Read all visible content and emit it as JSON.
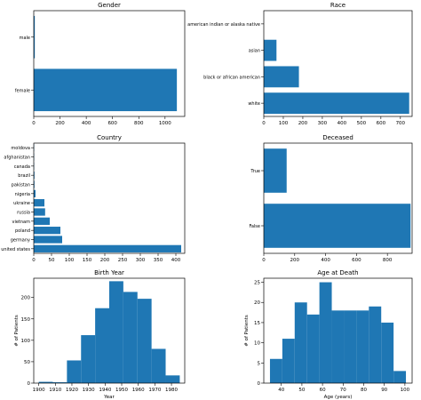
{
  "bar_color": "#1f77b4",
  "chart_data": [
    {
      "id": "gender",
      "type": "barh",
      "title": "Gender",
      "categories": [
        "female",
        "male"
      ],
      "values": [
        1090,
        8
      ],
      "xlim": [
        0,
        1150
      ],
      "xticks": [
        0,
        200,
        400,
        600,
        800,
        1000
      ],
      "xlabel": "",
      "ylabel": ""
    },
    {
      "id": "race",
      "type": "barh",
      "title": "Race",
      "categories": [
        "white",
        "black or african american",
        "asian",
        "american indian or alaska native"
      ],
      "values": [
        745,
        180,
        65,
        0
      ],
      "xlim": [
        0,
        760
      ],
      "xticks": [
        0,
        100,
        200,
        300,
        400,
        500,
        600,
        700
      ],
      "xlabel": "",
      "ylabel": ""
    },
    {
      "id": "country",
      "type": "barh",
      "title": "Country",
      "categories": [
        "united states",
        "germany",
        "poland",
        "vietnam",
        "russia",
        "ukraine",
        "nigeria",
        "pakistan",
        "brazil",
        "canada",
        "afghanistan",
        "moldova"
      ],
      "values": [
        415,
        80,
        75,
        45,
        32,
        30,
        5,
        2,
        2,
        1,
        1,
        1
      ],
      "xlim": [
        0,
        425
      ],
      "xticks": [
        0,
        50,
        100,
        150,
        200,
        250,
        300,
        350,
        400
      ],
      "xlabel": "",
      "ylabel": ""
    },
    {
      "id": "deceased",
      "type": "barh",
      "title": "Deceased",
      "categories": [
        "False",
        "True"
      ],
      "values": [
        950,
        148
      ],
      "xlim": [
        0,
        960
      ],
      "xticks": [
        0,
        200,
        400,
        600,
        800
      ],
      "xlabel": "",
      "ylabel": ""
    },
    {
      "id": "birth",
      "type": "histogram",
      "title": "Birth Year",
      "bin_edges": [
        1900,
        1908.5,
        1917,
        1925.5,
        1934,
        1942.5,
        1951,
        1959.5,
        1968,
        1976.5,
        1985
      ],
      "counts": [
        3,
        2,
        53,
        112,
        175,
        238,
        213,
        197,
        80,
        18
      ],
      "xlim": [
        1897,
        1988
      ],
      "ylim": [
        0,
        245
      ],
      "xticks": [
        1900,
        1910,
        1920,
        1930,
        1940,
        1950,
        1960,
        1970,
        1980
      ],
      "yticks": [
        0,
        50,
        100,
        150,
        200
      ],
      "xlabel": "Year",
      "ylabel": "# of Patients"
    },
    {
      "id": "age",
      "type": "histogram",
      "title": "Age at Death",
      "bin_edges": [
        34.5,
        40.5,
        46.5,
        52.5,
        58.5,
        64.5,
        70.5,
        76.5,
        82.5,
        88.5,
        94.5,
        100.5
      ],
      "counts": [
        6,
        11,
        20,
        17,
        25,
        18,
        18,
        18,
        19,
        15,
        3
      ],
      "xlim": [
        31.5,
        103.5
      ],
      "ylim": [
        0,
        26
      ],
      "xticks": [
        40,
        50,
        60,
        70,
        80,
        90,
        100
      ],
      "yticks": [
        0,
        5,
        10,
        15,
        20,
        25
      ],
      "xlabel": "Age (years)",
      "ylabel": "# of Patients"
    }
  ]
}
